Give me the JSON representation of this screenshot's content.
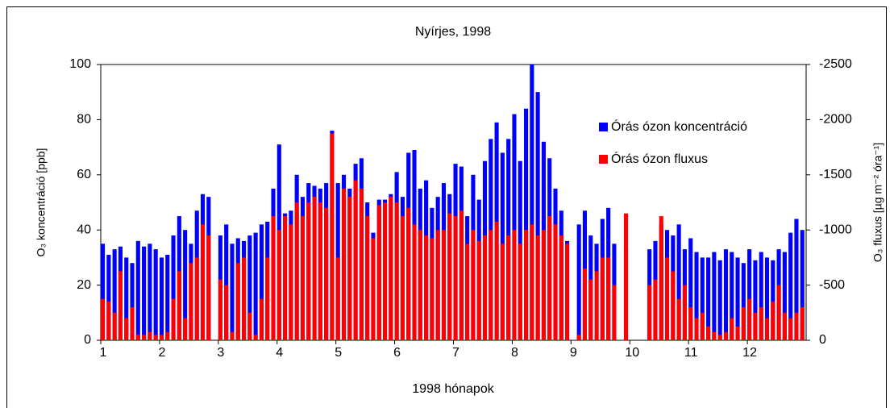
{
  "chart_data": {
    "type": "bar",
    "title": "Nyírjes, 1998",
    "x_label": "1998 hónapok",
    "y_label": "O₃ koncentráció [ppb]",
    "y2_label": "O₃ fluxus [µg m⁻² óra⁻¹]",
    "xlim": [
      1,
      13
    ],
    "xticks": [
      1,
      2,
      3,
      4,
      5,
      6,
      7,
      8,
      9,
      10,
      11,
      12
    ],
    "ylim": [
      0,
      100
    ],
    "yticks": [
      0,
      20,
      40,
      60,
      80,
      100
    ],
    "y2lim": [
      0,
      -2500
    ],
    "y2ticks": [
      0,
      -500,
      -1000,
      -1500,
      -2000,
      -2500
    ],
    "x": [
      1,
      1.1,
      1.2,
      1.3,
      1.4,
      1.5,
      1.6,
      1.7,
      1.8,
      1.9,
      2,
      2.1,
      2.2,
      2.3,
      2.4,
      2.5,
      2.6,
      2.7,
      2.8,
      2.9,
      3,
      3.1,
      3.2,
      3.3,
      3.4,
      3.5,
      3.6,
      3.7,
      3.8,
      3.9,
      4,
      4.1,
      4.2,
      4.3,
      4.4,
      4.5,
      4.6,
      4.7,
      4.8,
      4.9,
      5,
      5.1,
      5.2,
      5.3,
      5.4,
      5.5,
      5.6,
      5.7,
      5.8,
      5.9,
      6,
      6.1,
      6.2,
      6.3,
      6.4,
      6.5,
      6.6,
      6.7,
      6.8,
      6.9,
      7,
      7.1,
      7.2,
      7.3,
      7.4,
      7.5,
      7.6,
      7.7,
      7.8,
      7.9,
      8,
      8.1,
      8.2,
      8.3,
      8.4,
      8.5,
      8.6,
      8.7,
      8.8,
      8.9,
      9,
      9.1,
      9.2,
      9.3,
      9.4,
      9.5,
      9.6,
      9.7,
      9.8,
      9.9,
      10,
      10.1,
      10.2,
      10.3,
      10.4,
      10.5,
      10.6,
      10.7,
      10.8,
      10.9,
      11,
      11.1,
      11.2,
      11.3,
      11.4,
      11.5,
      11.6,
      11.7,
      11.8,
      11.9,
      12,
      12.1,
      12.2,
      12.3,
      12.4,
      12.5,
      12.6,
      12.7,
      12.8,
      12.9
    ],
    "series": [
      {
        "name": "Órás ózon koncentráció",
        "color": "#0000ff",
        "values": [
          35,
          31,
          33,
          34,
          30,
          28,
          36,
          34,
          35,
          33,
          30,
          31,
          38,
          45,
          40,
          35,
          47,
          53,
          52,
          null,
          38,
          42,
          35,
          37,
          36,
          38,
          39,
          42,
          43,
          55,
          71,
          46,
          47,
          60,
          52,
          57,
          56,
          55,
          57,
          76,
          57,
          60,
          55,
          64,
          66,
          50,
          39,
          51,
          51,
          53,
          61,
          52,
          68,
          69,
          55,
          58,
          48,
          52,
          57,
          53,
          64,
          63,
          45,
          60,
          51,
          65,
          73,
          79,
          68,
          73,
          82,
          65,
          84,
          100,
          90,
          72,
          66,
          55,
          47,
          36,
          null,
          42,
          47,
          38,
          35,
          44,
          48,
          35,
          null,
          33,
          null,
          null,
          null,
          33,
          36,
          42,
          40,
          38,
          42,
          33,
          37,
          32,
          30,
          30,
          32,
          29,
          33,
          32,
          30,
          28,
          33,
          29,
          32,
          30,
          29,
          33,
          32,
          39,
          44,
          40
        ]
      },
      {
        "name": "Órás ózon fluxus",
        "color": "#ff0000",
        "axis": "y2",
        "values": [
          -375,
          -350,
          -250,
          -625,
          -200,
          -300,
          -50,
          -50,
          -75,
          -50,
          -50,
          -75,
          -375,
          -625,
          -200,
          -700,
          -750,
          -1050,
          -950,
          null,
          -550,
          -500,
          -75,
          -700,
          -750,
          -250,
          -50,
          -375,
          -750,
          -1125,
          -1000,
          -1125,
          -1050,
          -1250,
          -1125,
          -1250,
          -1300,
          -1250,
          -1200,
          -1875,
          -750,
          -1375,
          -1300,
          -1450,
          -1375,
          -1125,
          -925,
          -1225,
          -1250,
          -1300,
          -1250,
          -1125,
          -1200,
          -1050,
          -1000,
          -950,
          -925,
          -1000,
          -1000,
          -1150,
          -1125,
          -1175,
          -875,
          -1000,
          -900,
          -950,
          -1000,
          -1075,
          -875,
          -950,
          -1000,
          -875,
          -1000,
          -1050,
          -950,
          -1000,
          -1125,
          -1050,
          -950,
          -875,
          null,
          -50,
          -650,
          -550,
          -625,
          -750,
          -750,
          -500,
          null,
          -1150,
          null,
          null,
          null,
          -500,
          -550,
          -1125,
          -750,
          -625,
          -375,
          -500,
          -300,
          -200,
          -250,
          -125,
          -75,
          -50,
          -75,
          -200,
          -125,
          -300,
          -375,
          -250,
          -300,
          -200,
          -350,
          -500,
          -250,
          -200,
          -250,
          -300
        ]
      }
    ]
  }
}
